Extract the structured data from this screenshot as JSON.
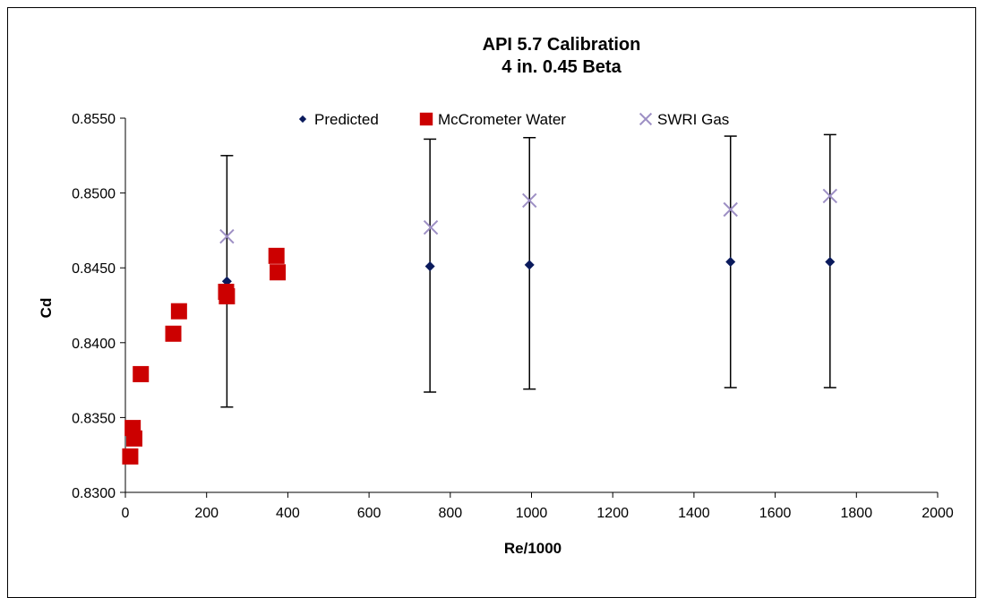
{
  "chart_data": {
    "type": "scatter",
    "title": "API 5.7 Calibration",
    "subtitle": "4 in. 0.45 Beta",
    "xlabel": "Re/1000",
    "ylabel": "Cd",
    "xlim": [
      0,
      2000
    ],
    "ylim": [
      0.83,
      0.855
    ],
    "x_ticks": [
      "0",
      "200",
      "400",
      "600",
      "800",
      "1000",
      "1200",
      "1400",
      "1600",
      "1800",
      "2000"
    ],
    "y_ticks": [
      "0.8300",
      "0.8350",
      "0.8400",
      "0.8450",
      "0.8500",
      "0.8550"
    ],
    "grid": false,
    "legend_position": "top",
    "series": [
      {
        "name": "Predicted",
        "marker": "diamond",
        "color": "#0a1a5c",
        "points": [
          {
            "x": 250,
            "y": 0.8441,
            "err_low": 0.8357,
            "err_high": 0.8525
          },
          {
            "x": 750,
            "y": 0.8451,
            "err_low": 0.8367,
            "err_high": 0.8536
          },
          {
            "x": 995,
            "y": 0.8452,
            "err_low": 0.8369,
            "err_high": 0.8537
          },
          {
            "x": 1490,
            "y": 0.8454,
            "err_low": 0.837,
            "err_high": 0.8538
          },
          {
            "x": 1735,
            "y": 0.8454,
            "err_low": 0.837,
            "err_high": 0.8539
          }
        ]
      },
      {
        "name": "McCrometer Water",
        "marker": "square",
        "color": "#cc0000",
        "points": [
          {
            "x": 12,
            "y": 0.8324
          },
          {
            "x": 18,
            "y": 0.8343
          },
          {
            "x": 22,
            "y": 0.8336
          },
          {
            "x": 38,
            "y": 0.8379
          },
          {
            "x": 118,
            "y": 0.8406
          },
          {
            "x": 132,
            "y": 0.8421
          },
          {
            "x": 248,
            "y": 0.8434
          },
          {
            "x": 250,
            "y": 0.8431
          },
          {
            "x": 372,
            "y": 0.8458
          },
          {
            "x": 375,
            "y": 0.8447
          }
        ]
      },
      {
        "name": "SWRI Gas",
        "marker": "x",
        "color": "#9d8fc4",
        "points": [
          {
            "x": 250,
            "y": 0.8471
          },
          {
            "x": 752,
            "y": 0.8477
          },
          {
            "x": 995,
            "y": 0.8495
          },
          {
            "x": 1490,
            "y": 0.8489
          },
          {
            "x": 1735,
            "y": 0.8498
          }
        ]
      }
    ]
  }
}
